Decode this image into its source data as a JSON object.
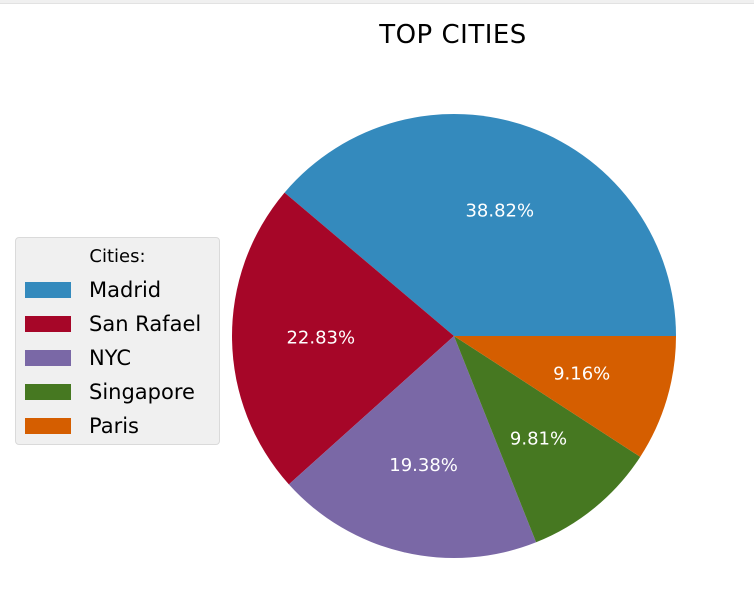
{
  "chart_data": {
    "type": "pie",
    "title": "TOP CITIES",
    "legend": {
      "title": "Cities:",
      "placement": "center-left"
    },
    "slices": [
      {
        "label": "Madrid",
        "value": 38.82,
        "pct_label": "38.82%",
        "color": "#348abd"
      },
      {
        "label": "San Rafael",
        "value": 22.83,
        "pct_label": "22.83%",
        "color": "#a60628"
      },
      {
        "label": "NYC",
        "value": 19.38,
        "pct_label": "19.38%",
        "color": "#7a68a6"
      },
      {
        "label": "Singapore",
        "value": 9.81,
        "pct_label": "9.81%",
        "color": "#467821"
      },
      {
        "label": "Paris",
        "value": 9.16,
        "pct_label": "9.16%",
        "color": "#d55e00"
      }
    ]
  }
}
